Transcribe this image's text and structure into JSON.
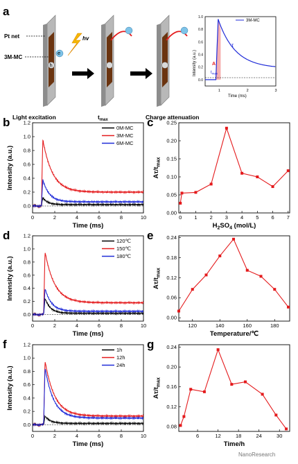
{
  "panel_labels": [
    "a",
    "b",
    "c",
    "d",
    "e",
    "f",
    "g"
  ],
  "schematic": {
    "pt_net": "Pt net",
    "sample": "3M-MC",
    "hv": "hv",
    "electron": "e",
    "hole": "h",
    "captions": [
      "Light excitation",
      "t",
      "Charge attenuation"
    ],
    "caption_sub": "max",
    "inset_legend": "3M-MC",
    "inset_ylabel": "Intensity (a.u.)",
    "inset_xlabel": "Time (ms)",
    "inset_tau": "τ",
    "inset_A": "A",
    "inset_t": "t",
    "inset_tsub": "max"
  },
  "watermark": "NanoResearch",
  "chart_data": [
    {
      "id": "b",
      "type": "line",
      "xlabel": "Time (ms)",
      "ylabel": "Intensity (a.u.)",
      "xlim": [
        0,
        10
      ],
      "ylim": [
        -0.1,
        1.2
      ],
      "xticks": [
        0,
        2,
        4,
        6,
        8,
        10
      ],
      "yticks": [
        0.0,
        0.2,
        0.4,
        0.6,
        0.8,
        1.0,
        1.2
      ],
      "ydec": 1,
      "legend": "top-right",
      "series": [
        {
          "name": "0M-MC",
          "color": "#000000",
          "peak": 0.12,
          "t0": 0.8,
          "tau": 0.45,
          "base": 0.02
        },
        {
          "name": "3M-MC",
          "color": "#e41a1c",
          "peak": 0.96,
          "t0": 0.8,
          "tau": 0.9,
          "base": 0.2
        },
        {
          "name": "6M-MC",
          "color": "#1f2bd8",
          "peak": 0.38,
          "t0": 0.8,
          "tau": 0.6,
          "base": 0.06
        }
      ]
    },
    {
      "id": "c",
      "type": "line",
      "xlabel": "H2SO4 (mol/L)",
      "xlabel_main": "H",
      "xlabel_sub": "2",
      "xlabel_rest": "SO",
      "xlabel_sub2": "4",
      "xlabel_end": " (mol/L)",
      "ylabel": "Aτ/t",
      "ylabel_sub": "max",
      "xlim": [
        -0.1,
        7.1
      ],
      "ylim": [
        0,
        0.25
      ],
      "xticks": [
        0,
        1,
        2,
        3,
        4,
        5,
        6,
        7
      ],
      "yticks": [
        0.0,
        0.05,
        0.1,
        0.15,
        0.2,
        0.25
      ],
      "ydec": 2,
      "x": [
        0,
        0.1,
        1,
        2,
        3,
        4,
        5,
        6,
        7
      ],
      "y": [
        0.027,
        0.055,
        0.057,
        0.08,
        0.235,
        0.11,
        0.1,
        0.073,
        0.117
      ]
    },
    {
      "id": "d",
      "type": "line",
      "xlabel": "Time (ms)",
      "ylabel": "Intensity (a.u.)",
      "xlim": [
        0,
        10
      ],
      "ylim": [
        -0.1,
        1.2
      ],
      "xticks": [
        0,
        2,
        4,
        6,
        8,
        10
      ],
      "yticks": [
        0.0,
        0.2,
        0.4,
        0.6,
        0.8,
        1.0,
        1.2
      ],
      "ydec": 1,
      "legend": "top-right",
      "series": [
        {
          "name": "120℃",
          "color": "#000000",
          "peak": 0.25,
          "t0": 1.0,
          "tau": 0.5,
          "base": 0.02
        },
        {
          "name": "150℃",
          "color": "#e41a1c",
          "peak": 0.96,
          "t0": 1.0,
          "tau": 0.9,
          "base": 0.18
        },
        {
          "name": "180℃",
          "color": "#1f2bd8",
          "peak": 0.4,
          "t0": 1.0,
          "tau": 0.6,
          "base": 0.05
        }
      ]
    },
    {
      "id": "e",
      "type": "line",
      "xlabel": "Temperature/℃",
      "ylabel": "Aτ/t",
      "ylabel_sub": "max",
      "xlim": [
        110,
        191
      ],
      "ylim": [
        -0.01,
        0.245
      ],
      "xticks": [
        120,
        140,
        160,
        180
      ],
      "yticks": [
        0.0,
        0.06,
        0.12,
        0.18,
        0.24
      ],
      "ydec": 2,
      "x": [
        110,
        120,
        130,
        140,
        150,
        160,
        170,
        180,
        190
      ],
      "y": [
        0.02,
        0.085,
        0.128,
        0.185,
        0.235,
        0.142,
        0.124,
        0.085,
        0.032
      ]
    },
    {
      "id": "f",
      "type": "line",
      "xlabel": "Time (ms)",
      "ylabel": "Intensity (a.u.)",
      "xlim": [
        0,
        10
      ],
      "ylim": [
        -0.1,
        1.2
      ],
      "xticks": [
        0,
        2,
        4,
        6,
        8,
        10
      ],
      "yticks": [
        0.0,
        0.2,
        0.4,
        0.6,
        0.8,
        1.0,
        1.2
      ],
      "ydec": 1,
      "legend": "top-right",
      "series": [
        {
          "name": "1h",
          "color": "#000000",
          "peak": 0.13,
          "t0": 1.0,
          "tau": 0.5,
          "base": 0.02
        },
        {
          "name": "12h",
          "color": "#e41a1c",
          "peak": 0.96,
          "t0": 1.0,
          "tau": 0.9,
          "base": 0.13
        },
        {
          "name": "24h",
          "color": "#1f2bd8",
          "peak": 0.86,
          "t0": 1.0,
          "tau": 0.8,
          "base": 0.1
        }
      ]
    },
    {
      "id": "g",
      "type": "line",
      "xlabel": "Time/h",
      "ylabel": "Aτ/t",
      "ylabel_sub": "max",
      "xlim": [
        0.5,
        33
      ],
      "ylim": [
        0.07,
        0.245
      ],
      "xticks": [
        6,
        12,
        18,
        24,
        30
      ],
      "yticks": [
        0.08,
        0.12,
        0.16,
        0.2,
        0.24
      ],
      "ydec": 2,
      "x": [
        1,
        2,
        4,
        8,
        12,
        16,
        20,
        25,
        29,
        32
      ],
      "y": [
        0.082,
        0.1,
        0.155,
        0.15,
        0.235,
        0.165,
        0.17,
        0.145,
        0.103,
        0.075
      ]
    }
  ]
}
